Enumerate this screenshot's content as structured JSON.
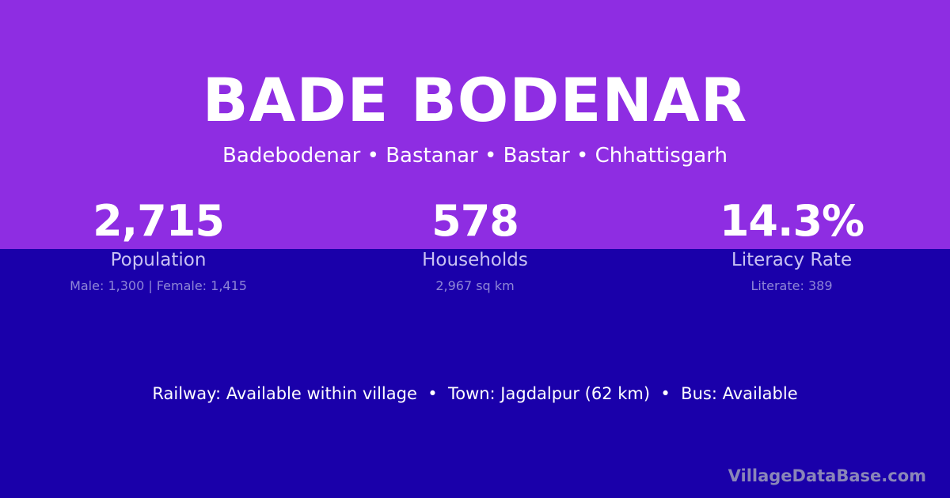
{
  "village": {
    "name": "BADE BODENAR",
    "location": "Badebodenar • Bastanar • Bastar • Chhattisgarh"
  },
  "stats": [
    {
      "value": "2,715",
      "label": "Population",
      "detail": "Male: 1,300 | Female: 1,415"
    },
    {
      "value": "578",
      "label": "Households",
      "detail": "2,967 sq km"
    },
    {
      "value": "14.3%",
      "label": "Literacy Rate",
      "detail": "Literate: 389"
    }
  ],
  "facts": "Railway: Available within village  •  Town: Jagdalpur (62 km)  •  Bus: Available",
  "brand": "VillageDataBase.com",
  "colors": {
    "top": "#8e2de2",
    "bottom": "#1a00aa"
  }
}
